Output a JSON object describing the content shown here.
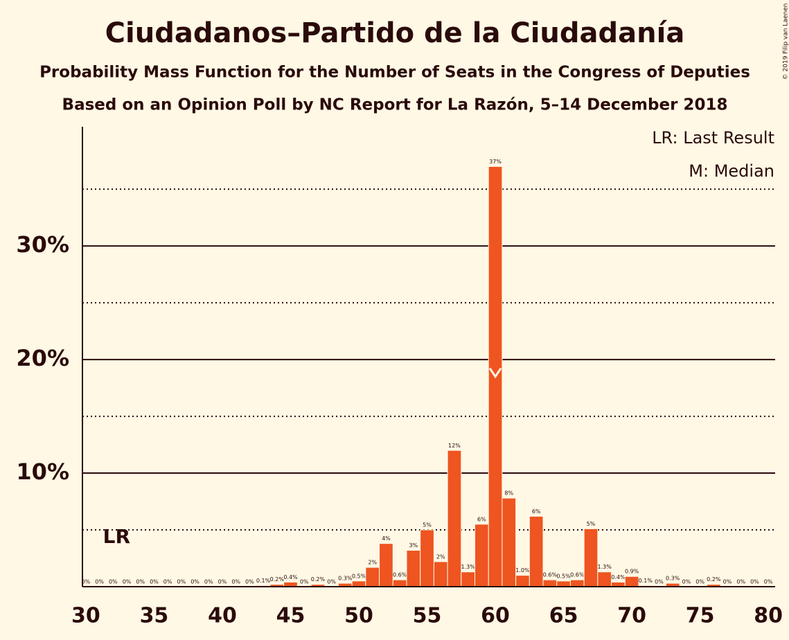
{
  "chart_data": {
    "type": "bar",
    "title": "Ciudadanos–Partido de la Ciudadanía",
    "subtitle": "Probability Mass Function for the Number of Seats in the Congress of Deputies",
    "source": "Based on an Opinion Poll by NC Report for La Razón, 5–14 December 2018",
    "copyright": "© 2019 Filip van Laenen",
    "legend": [
      "LR: Last Result",
      "M: Median"
    ],
    "last_result_label": "LR",
    "last_result": 32,
    "median": 60,
    "color": "#ee5520",
    "x": [
      30,
      31,
      32,
      33,
      34,
      35,
      36,
      37,
      38,
      39,
      40,
      41,
      42,
      43,
      44,
      45,
      46,
      47,
      48,
      49,
      50,
      51,
      52,
      53,
      54,
      55,
      56,
      57,
      58,
      59,
      60,
      61,
      62,
      63,
      64,
      65,
      66,
      67,
      68,
      69,
      70,
      71,
      72,
      73,
      74,
      75,
      76,
      77,
      78,
      79,
      80
    ],
    "values": [
      0,
      0,
      0,
      0,
      0,
      0,
      0,
      0,
      0,
      0,
      0,
      0,
      0,
      0.1,
      0.2,
      0.4,
      0,
      0.2,
      0,
      0.3,
      0.5,
      1.7,
      3.8,
      0.6,
      3.2,
      5.0,
      2.2,
      12.0,
      1.3,
      5.5,
      37.0,
      7.8,
      1.0,
      6.2,
      0.6,
      0.5,
      0.6,
      5.1,
      1.3,
      0.4,
      0.9,
      0.1,
      0,
      0.3,
      0,
      0,
      0.2,
      0,
      0,
      0,
      0
    ],
    "value_labels": [
      "0%",
      "0%",
      "0%",
      "0%",
      "0%",
      "0%",
      "0%",
      "0%",
      "0%",
      "0%",
      "0%",
      "0%",
      "0%",
      "0.1%",
      "0.2%",
      "0.4%",
      "0%",
      "0.2%",
      "0%",
      "0.3%",
      "0.5%",
      "2%",
      "4%",
      "0.6%",
      "3%",
      "5%",
      "2%",
      "12%",
      "1.3%",
      "6%",
      "37%",
      "8%",
      "1.0%",
      "6%",
      "0.6%",
      "0.5%",
      "0.6%",
      "5%",
      "1.3%",
      "0.4%",
      "0.9%",
      "0.1%",
      "0%",
      "0.3%",
      "0%",
      "0%",
      "0.2%",
      "0%",
      "0%",
      "0%",
      "0%"
    ],
    "xlim": [
      29.75,
      80.5
    ],
    "xticks": [
      30,
      35,
      40,
      45,
      50,
      55,
      60,
      65,
      70,
      75,
      80
    ],
    "ylim": [
      0,
      40.5
    ],
    "yticks": [
      {
        "value": 10,
        "label": "10%"
      },
      {
        "value": 20,
        "label": "20%"
      },
      {
        "value": 30,
        "label": "30%"
      }
    ],
    "minor_yticks": [
      5,
      15,
      25,
      35
    ],
    "grid": true
  }
}
